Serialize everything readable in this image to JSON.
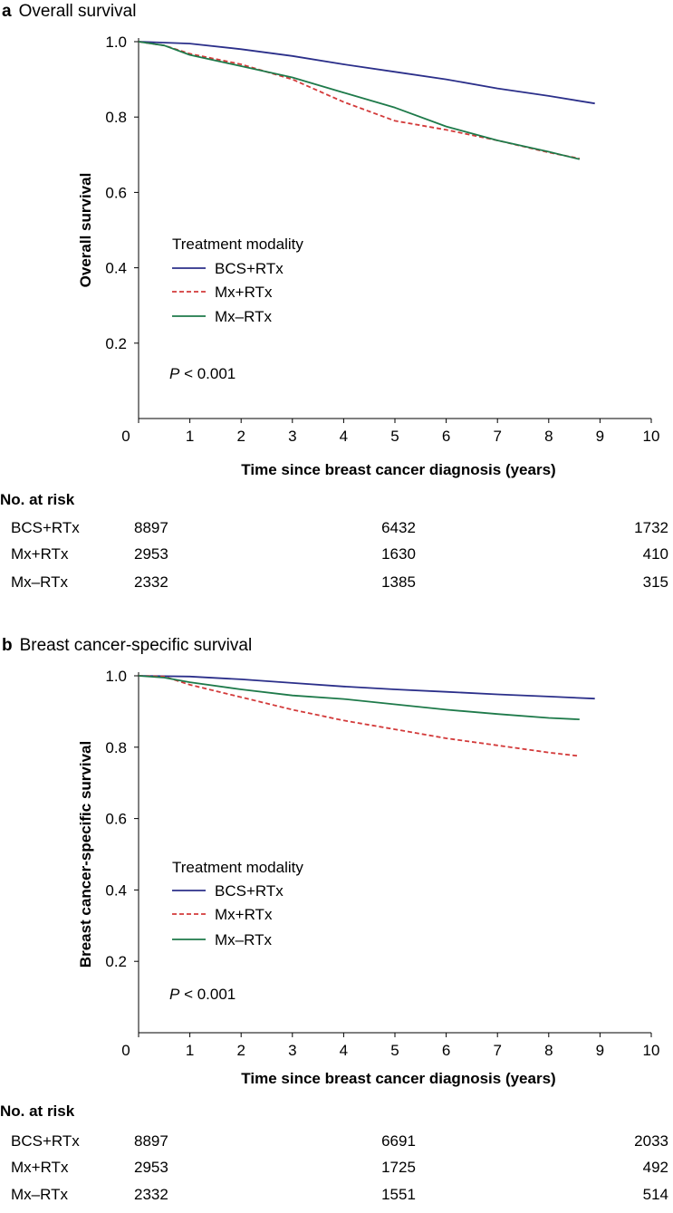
{
  "chart_data": [
    {
      "type": "line",
      "panel_letter": "a",
      "title": "Overall survival",
      "xlabel": "Time since breast cancer diagnosis (years)",
      "ylabel": "Overall survival",
      "xlim": [
        0,
        10
      ],
      "ylim": [
        0,
        1.0
      ],
      "x_ticks": [
        "0",
        "1",
        "2",
        "3",
        "4",
        "5",
        "6",
        "7",
        "8",
        "9",
        "10"
      ],
      "y_ticks": [
        "0.2",
        "0.4",
        "0.6",
        "0.8",
        "1.0"
      ],
      "legend_title": "Treatment modality",
      "p_value_italic": "P",
      "p_value_rest": " < 0.001",
      "series": [
        {
          "name": "BCS+RTx",
          "color": "#2b2f8a",
          "dashed": false,
          "x": [
            0,
            1,
            2,
            3,
            4,
            5,
            6,
            7,
            8,
            8.9
          ],
          "y": [
            1.0,
            0.995,
            0.98,
            0.962,
            0.94,
            0.92,
            0.9,
            0.876,
            0.856,
            0.836
          ]
        },
        {
          "name": "Mx+RTx",
          "color": "#d33a3a",
          "dashed": true,
          "x": [
            0,
            0.5,
            1,
            2,
            3,
            4,
            5,
            6,
            7,
            8,
            8.6
          ],
          "y": [
            1.0,
            0.99,
            0.968,
            0.94,
            0.9,
            0.84,
            0.79,
            0.766,
            0.738,
            0.706,
            0.69
          ]
        },
        {
          "name": "Mx–RTx",
          "color": "#1e7a4a",
          "dashed": false,
          "x": [
            0,
            0.5,
            1,
            2,
            3,
            4,
            5,
            6,
            7,
            8,
            8.6
          ],
          "y": [
            1.0,
            0.99,
            0.965,
            0.935,
            0.905,
            0.865,
            0.825,
            0.775,
            0.738,
            0.708,
            0.688
          ]
        }
      ],
      "risk_table": {
        "title": "No. at risk",
        "rows": [
          {
            "name": "BCS+RTx",
            "values": [
              "8897",
              "6432",
              "1732"
            ]
          },
          {
            "name": "Mx+RTx",
            "values": [
              "2953",
              "1630",
              "410"
            ]
          },
          {
            "name": "Mx–RTx",
            "values": [
              "2332",
              "1385",
              "315"
            ]
          }
        ]
      }
    },
    {
      "type": "line",
      "panel_letter": "b",
      "title": "Breast cancer-specific survival",
      "xlabel": "Time since breast cancer diagnosis (years)",
      "ylabel": "Breast cancer-specific survival",
      "xlim": [
        0,
        10
      ],
      "ylim": [
        0,
        1.0
      ],
      "x_ticks": [
        "0",
        "1",
        "2",
        "3",
        "4",
        "5",
        "6",
        "7",
        "8",
        "9",
        "10"
      ],
      "y_ticks": [
        "0.2",
        "0.4",
        "0.6",
        "0.8",
        "1.0"
      ],
      "legend_title": "Treatment modality",
      "p_value_italic": "P",
      "p_value_rest": " < 0.001",
      "series": [
        {
          "name": "BCS+RTx",
          "color": "#2b2f8a",
          "dashed": false,
          "x": [
            0,
            1,
            2,
            3,
            4,
            5,
            6,
            7,
            8,
            8.9
          ],
          "y": [
            1.0,
            0.998,
            0.99,
            0.98,
            0.97,
            0.962,
            0.955,
            0.948,
            0.942,
            0.936
          ]
        },
        {
          "name": "Mx+RTx",
          "color": "#d33a3a",
          "dashed": true,
          "x": [
            0,
            0.5,
            1,
            2,
            3,
            4,
            5,
            6,
            7,
            8,
            8.6
          ],
          "y": [
            1.0,
            0.998,
            0.975,
            0.94,
            0.905,
            0.875,
            0.85,
            0.825,
            0.805,
            0.785,
            0.775
          ]
        },
        {
          "name": "Mx–RTx",
          "color": "#1e7a4a",
          "dashed": false,
          "x": [
            0,
            0.5,
            1,
            2,
            3,
            4,
            5,
            6,
            7,
            8,
            8.6
          ],
          "y": [
            1.0,
            0.995,
            0.982,
            0.962,
            0.945,
            0.935,
            0.92,
            0.905,
            0.893,
            0.882,
            0.878
          ]
        }
      ],
      "risk_table": {
        "title": "No. at risk",
        "rows": [
          {
            "name": "BCS+RTx",
            "values": [
              "8897",
              "6691",
              "2033"
            ]
          },
          {
            "name": "Mx+RTx",
            "values": [
              "2953",
              "1725",
              "492"
            ]
          },
          {
            "name": "Mx–RTx",
            "values": [
              "2332",
              "1551",
              "514"
            ]
          }
        ]
      }
    }
  ]
}
